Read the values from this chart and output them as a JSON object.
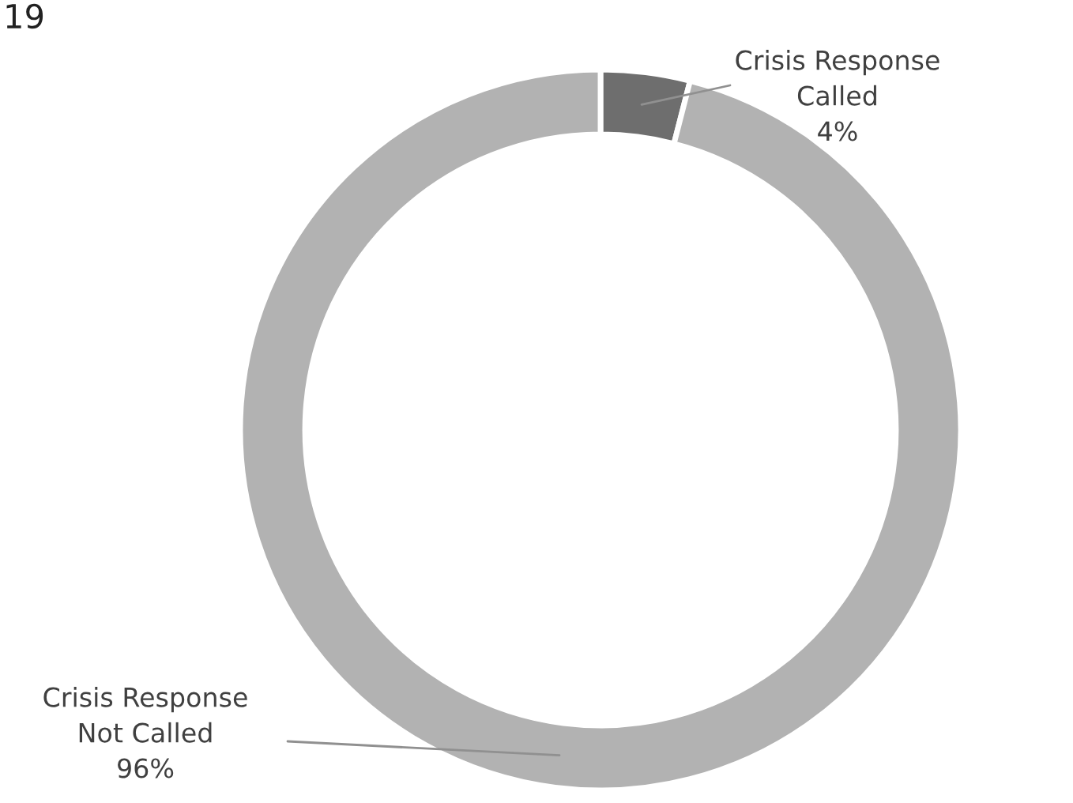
{
  "chart_data": {
    "type": "donut",
    "title": "19",
    "categories": [
      "Crisis Response\nCalled",
      "Crisis Response\nNot Called"
    ],
    "values": [
      4,
      96
    ],
    "colors": [
      "#6e6e6e",
      "#b2b2b2"
    ],
    "value_labels": [
      "4%",
      "96%"
    ]
  }
}
